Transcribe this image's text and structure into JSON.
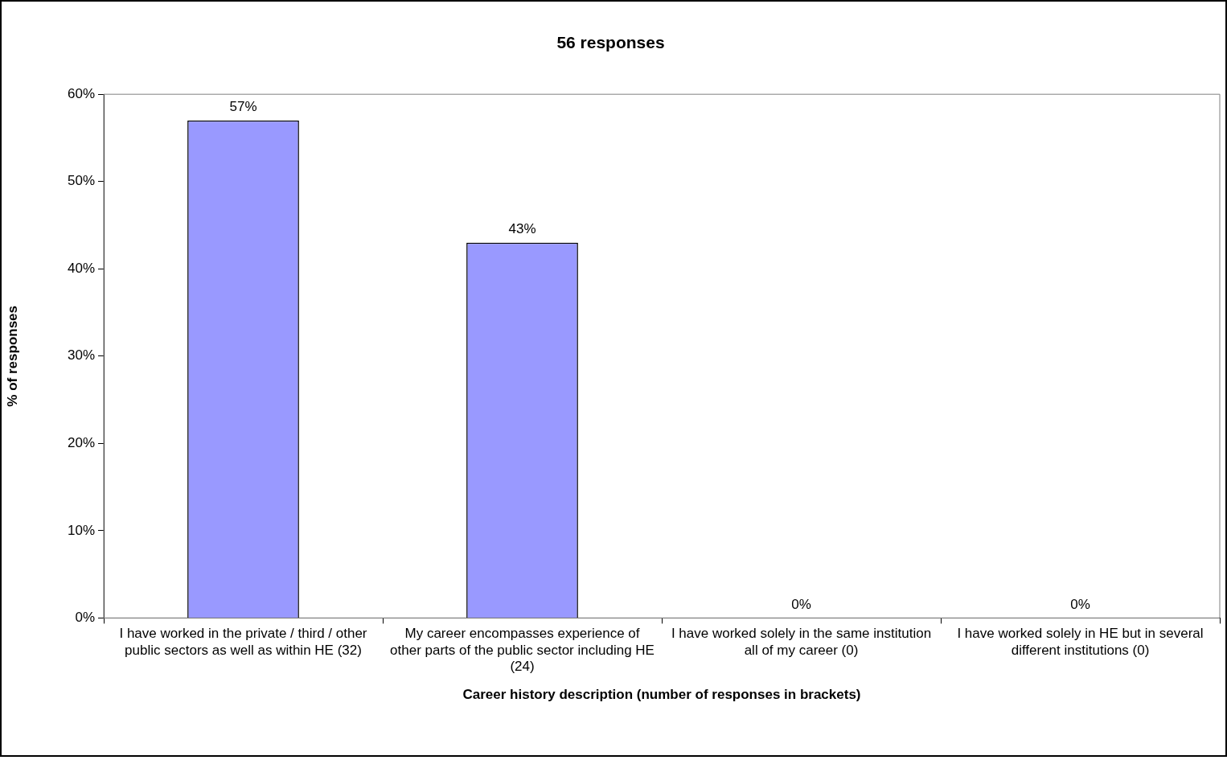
{
  "chart_data": {
    "type": "bar",
    "title": "56 responses",
    "xlabel": "Career history description (number of responses in brackets)",
    "ylabel": "% of responses",
    "categories": [
      "I have worked in the private / third / other public sectors as well as within HE (32)",
      "My career encompasses experience of other parts of the public sector including HE (24)",
      "I have worked solely in the same institution all of my career (0)",
      "I have worked solely in HE but in several different institutions (0)"
    ],
    "values": [
      57,
      43,
      0,
      0
    ],
    "value_labels": [
      "57%",
      "43%",
      "0%",
      "0%"
    ],
    "color": "#9999ff",
    "ylim": [
      0,
      60
    ],
    "yticks": [
      {
        "value": 0,
        "label": "0%"
      },
      {
        "value": 10,
        "label": "10%"
      },
      {
        "value": 20,
        "label": "20%"
      },
      {
        "value": 30,
        "label": "30%"
      },
      {
        "value": 40,
        "label": "40%"
      },
      {
        "value": 50,
        "label": "50%"
      },
      {
        "value": 60,
        "label": "60%"
      }
    ],
    "grid": false,
    "legend": false
  }
}
